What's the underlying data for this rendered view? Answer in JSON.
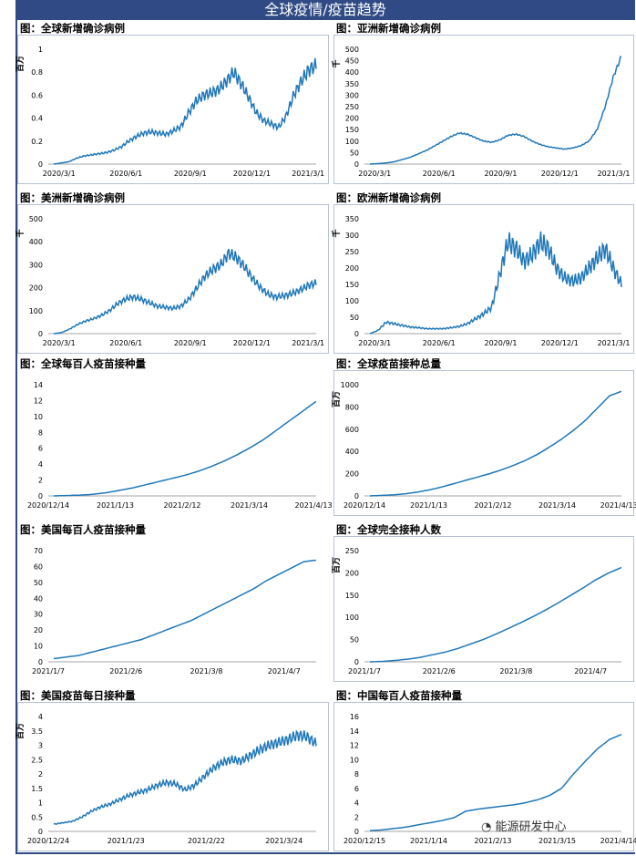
{
  "banner": "全球疫情/疫苗趋势",
  "watermark": "能源研发中心",
  "line_color": "#1f77b8",
  "chart_data": [
    {
      "type": "line",
      "title": "图：全球新增确诊病例",
      "ylabel": "百万",
      "ylim": [
        0,
        1
      ],
      "yticks": [
        "0",
        "0.2",
        "0.4",
        "0.6",
        "0.8",
        "1"
      ],
      "xticks": [
        "2020/3/1",
        "2020/6/1",
        "2020/9/1",
        "2020/12/1",
        "2021/3/1"
      ],
      "xticks_pos": [
        0.04,
        0.29,
        0.53,
        0.76,
        0.97
      ],
      "series": [
        {
          "values": [
            0,
            0.01,
            0.02,
            0.05,
            0.07,
            0.08,
            0.09,
            0.1,
            0.12,
            0.15,
            0.2,
            0.24,
            0.27,
            0.28,
            0.27,
            0.26,
            0.29,
            0.33,
            0.45,
            0.55,
            0.6,
            0.62,
            0.65,
            0.72,
            0.8,
            0.7,
            0.58,
            0.45,
            0.38,
            0.35,
            0.32,
            0.42,
            0.6,
            0.72,
            0.82,
            0.86
          ],
          "wiggle": 0.08
        }
      ]
    },
    {
      "type": "line",
      "title": "图：亚洲新增确诊病例",
      "ylabel": "千",
      "ylim": [
        0,
        500
      ],
      "yticks": [
        "0",
        "50",
        "100",
        "150",
        "200",
        "250",
        "300",
        "350",
        "400",
        "450",
        "500"
      ],
      "xticks": [
        "2020/3/1",
        "2020/6/1",
        "2020/9/1",
        "2020/12/1",
        "2021/3/1"
      ],
      "xticks_pos": [
        0.04,
        0.29,
        0.53,
        0.76,
        0.97
      ],
      "series": [
        {
          "values": [
            0,
            2,
            5,
            10,
            20,
            30,
            45,
            60,
            80,
            100,
            120,
            135,
            130,
            115,
            100,
            95,
            105,
            125,
            130,
            120,
            100,
            85,
            75,
            70,
            65,
            70,
            80,
            100,
            150,
            250,
            380,
            470
          ],
          "wiggle": 0.02
        }
      ]
    },
    {
      "type": "line",
      "title": "图：美洲新增确诊病例",
      "ylabel": "千",
      "ylim": [
        0,
        500
      ],
      "yticks": [
        "0",
        "100",
        "200",
        "300",
        "400",
        "500"
      ],
      "xticks": [
        "2020/3/1",
        "2020/6/1",
        "2020/9/1",
        "2020/12/1",
        "2021/3/1"
      ],
      "xticks_pos": [
        0.04,
        0.29,
        0.53,
        0.76,
        0.97
      ],
      "series": [
        {
          "values": [
            0,
            5,
            20,
            40,
            55,
            65,
            80,
            100,
            130,
            150,
            160,
            150,
            135,
            120,
            115,
            110,
            120,
            150,
            200,
            250,
            280,
            300,
            350,
            330,
            290,
            240,
            200,
            170,
            160,
            165,
            175,
            190,
            210,
            220
          ],
          "wiggle": 0.08
        }
      ]
    },
    {
      "type": "line",
      "title": "图：欧洲新增确诊病例",
      "ylabel": "千",
      "ylim": [
        0,
        350
      ],
      "yticks": [
        "0",
        "50",
        "100",
        "150",
        "200",
        "250",
        "300",
        "350"
      ],
      "xticks": [
        "2020/3/1",
        "2020/6/1",
        "2020/9/1",
        "2020/12/1",
        "2021/3/1"
      ],
      "xticks_pos": [
        0.04,
        0.29,
        0.53,
        0.76,
        0.97
      ],
      "series": [
        {
          "values": [
            0,
            10,
            35,
            30,
            25,
            20,
            18,
            15,
            15,
            15,
            18,
            22,
            30,
            45,
            60,
            80,
            180,
            280,
            260,
            220,
            240,
            280,
            260,
            200,
            170,
            160,
            170,
            200,
            230,
            260,
            200,
            150
          ],
          "wiggle": 0.12
        }
      ]
    },
    {
      "type": "line",
      "title": "图：全球每百人疫苗接种量",
      "ylabel": "",
      "ylim": [
        0,
        14
      ],
      "yticks": [
        "0",
        "2",
        "4",
        "6",
        "8",
        "10",
        "12",
        "14"
      ],
      "xticks": [
        "2020/12/14",
        "2021/1/13",
        "2021/2/12",
        "2021/3/14",
        "2021/4/13"
      ],
      "xticks_pos": [
        0.0,
        0.25,
        0.5,
        0.75,
        0.99
      ],
      "series": [
        {
          "values": [
            0,
            0.05,
            0.1,
            0.2,
            0.4,
            0.7,
            1.0,
            1.4,
            1.8,
            2.2,
            2.6,
            3.1,
            3.7,
            4.4,
            5.2,
            6.1,
            7.1,
            8.3,
            9.5,
            10.7,
            11.9
          ],
          "wiggle": 0
        }
      ]
    },
    {
      "type": "line",
      "title": "图：全球疫苗接种总量",
      "ylabel": "百万",
      "ylim": [
        0,
        1000
      ],
      "yticks": [
        "0",
        "200",
        "400",
        "600",
        "800",
        "1000"
      ],
      "xticks": [
        "2020/12/14",
        "2021/1/13",
        "2021/2/12",
        "2021/3/14",
        "2021/4/13"
      ],
      "xticks_pos": [
        0.0,
        0.25,
        0.5,
        0.75,
        0.99
      ],
      "series": [
        {
          "values": [
            0,
            5,
            10,
            20,
            35,
            55,
            80,
            110,
            140,
            170,
            200,
            235,
            275,
            320,
            375,
            440,
            510,
            590,
            680,
            790,
            900,
            940
          ],
          "wiggle": 0
        }
      ]
    },
    {
      "type": "line",
      "title": "图：美国每百人疫苗接种量",
      "ylabel": "",
      "ylim": [
        0,
        70
      ],
      "yticks": [
        "0",
        "10",
        "20",
        "30",
        "40",
        "50",
        "60",
        "70"
      ],
      "xticks": [
        "2021/1/7",
        "2021/2/6",
        "2021/3/8",
        "2021/4/7"
      ],
      "xticks_pos": [
        0.0,
        0.29,
        0.59,
        0.88
      ],
      "series": [
        {
          "values": [
            2,
            3,
            4,
            6,
            8,
            10,
            12,
            14,
            17,
            20,
            23,
            26,
            30,
            34,
            38,
            42,
            46,
            51,
            55,
            59,
            63,
            64
          ],
          "wiggle": 0
        }
      ]
    },
    {
      "type": "line",
      "title": "图：全球完全接种人数",
      "ylabel": "百万",
      "ylim": [
        0,
        250
      ],
      "yticks": [
        "0",
        "50",
        "100",
        "150",
        "200",
        "250"
      ],
      "xticks": [
        "2021/1/7",
        "2021/2/6",
        "2021/3/8",
        "2021/4/7"
      ],
      "xticks_pos": [
        0.0,
        0.29,
        0.59,
        0.88
      ],
      "series": [
        {
          "values": [
            0,
            1,
            3,
            6,
            10,
            16,
            22,
            30,
            40,
            50,
            62,
            75,
            88,
            102,
            117,
            133,
            150,
            167,
            185,
            200,
            212
          ],
          "wiggle": 0
        }
      ]
    },
    {
      "type": "line",
      "title": "图：美国疫苗每日接种量",
      "ylabel": "百万",
      "ylim": [
        0,
        4
      ],
      "yticks": [
        "0",
        "0.5",
        "1",
        "1.5",
        "2",
        "2.5",
        "3",
        "3.5",
        "4"
      ],
      "xticks": [
        "2020/12/24",
        "2021/1/23",
        "2021/2/22",
        "2021/3/24"
      ],
      "xticks_pos": [
        0.0,
        0.29,
        0.59,
        0.88
      ],
      "series": [
        {
          "values": [
            0.25,
            0.3,
            0.35,
            0.5,
            0.7,
            0.85,
            0.95,
            1.1,
            1.25,
            1.35,
            1.45,
            1.6,
            1.7,
            1.65,
            1.45,
            1.6,
            1.9,
            2.2,
            2.4,
            2.5,
            2.45,
            2.65,
            2.85,
            3.0,
            3.1,
            3.2,
            3.35,
            3.3,
            3.05
          ],
          "wiggle": 0.06
        }
      ]
    },
    {
      "type": "line",
      "title": "图：中国每百人疫苗接种量",
      "ylabel": "",
      "ylim": [
        0,
        16
      ],
      "yticks": [
        "0",
        "2",
        "4",
        "6",
        "8",
        "10",
        "12",
        "14",
        "16"
      ],
      "xticks": [
        "2020/12/15",
        "2021/1/14",
        "2021/2/13",
        "2021/3/15",
        "2021/4/14"
      ],
      "xticks_pos": [
        0.0,
        0.25,
        0.5,
        0.75,
        0.99
      ],
      "series": [
        {
          "values": [
            0.1,
            0.2,
            0.4,
            0.6,
            0.9,
            1.2,
            1.5,
            1.9,
            2.8,
            3.1,
            3.3,
            3.5,
            3.7,
            4.0,
            4.4,
            5.0,
            6.0,
            8.0,
            9.8,
            11.5,
            12.8,
            13.5
          ],
          "wiggle": 0
        }
      ]
    }
  ]
}
